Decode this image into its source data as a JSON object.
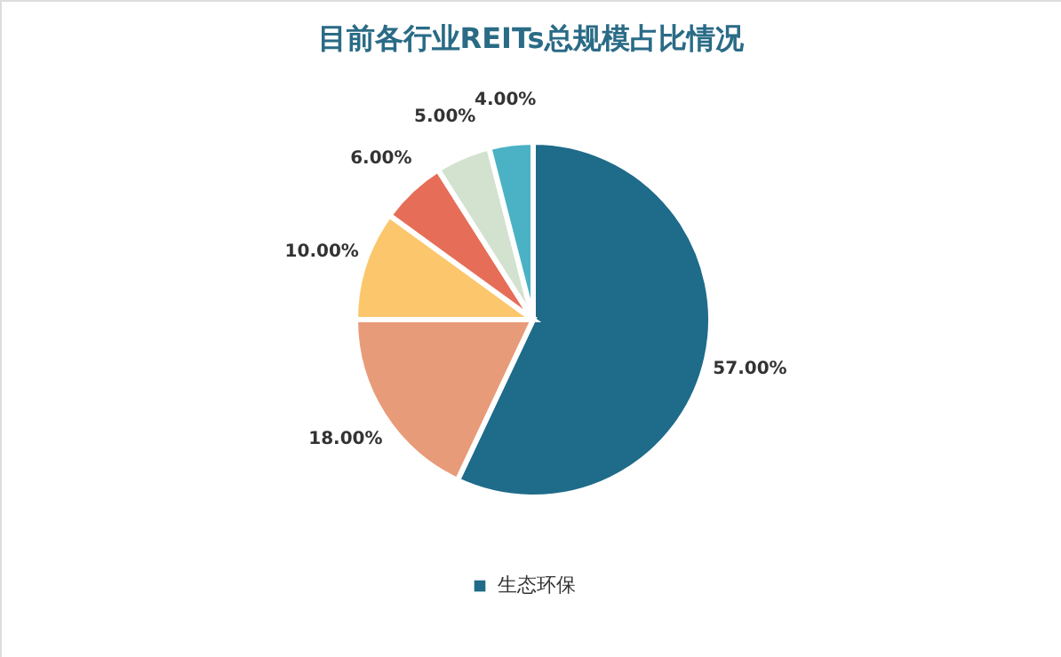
{
  "chart_data": {
    "type": "pie",
    "title": "目前各行业REITs总规模占比情况",
    "categories": [
      "生态环保",
      null,
      null,
      null,
      null,
      null
    ],
    "values": [
      57,
      18,
      10,
      6,
      5,
      4
    ],
    "colors": [
      "#1f6b8a",
      "#e89b78",
      "#fcc76c",
      "#e66e58",
      "#d3e2cf",
      "#4ab2c4"
    ],
    "value_labels": [
      "57.00%",
      "18.00%",
      "10.00%",
      "6.00%",
      "5.00%",
      "4.00%"
    ],
    "legend": "bottom"
  }
}
